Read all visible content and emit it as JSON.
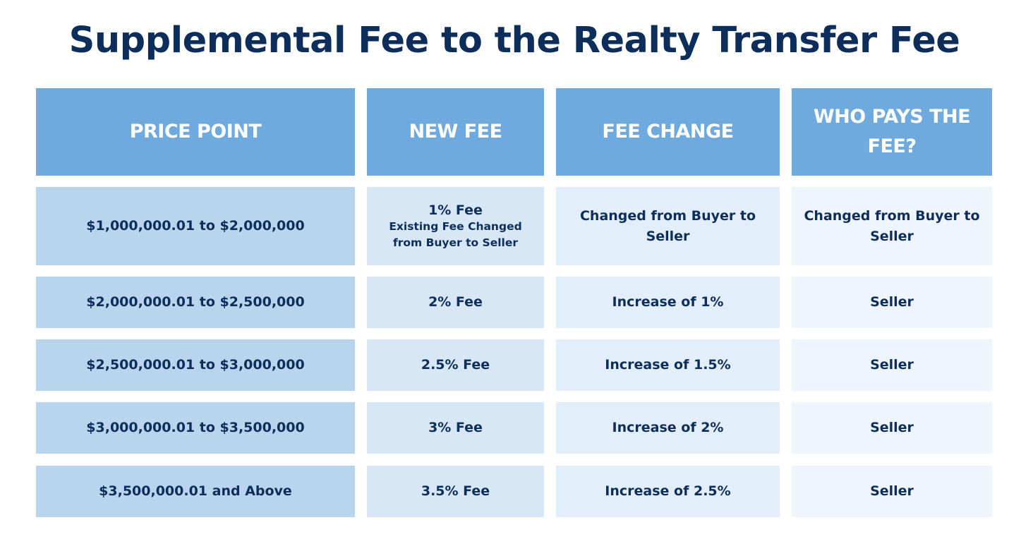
{
  "title": "Supplemental Fee to the Realty Transfer Fee",
  "headers": [
    "PRICE POINT",
    "NEW FEE",
    "FEE CHANGE",
    "WHO PAYS THE FEE?"
  ],
  "rows": [
    {
      "price_point": "$1,000,000.01 to $2,000,000",
      "new_fee": "1% Fee",
      "new_fee_note_line1": "Existing Fee Changed",
      "new_fee_note_line2": "from Buyer to Seller",
      "fee_change": "Changed from Buyer to Seller",
      "who_pays": "Changed from Buyer to Seller"
    },
    {
      "price_point": "$2,000,000.01 to $2,500,000",
      "new_fee": "2% Fee",
      "fee_change": "Increase of 1%",
      "who_pays": "Seller"
    },
    {
      "price_point": "$2,500,000.01 to $3,000,000",
      "new_fee": "2.5% Fee",
      "fee_change": "Increase of 1.5%",
      "who_pays": "Seller"
    },
    {
      "price_point": "$3,000,000.01 to $3,500,000",
      "new_fee": "3% Fee",
      "fee_change": "Increase of 2%",
      "who_pays": "Seller"
    },
    {
      "price_point": "$3,500,000.01 and Above",
      "new_fee": "3.5% Fee",
      "fee_change": "Increase of 2.5%",
      "who_pays": "Seller"
    }
  ],
  "colors": {
    "title": "#0d2d5a",
    "header_bg": "#6eaade",
    "header_text": "#ffffff",
    "col1_bg": "#b9d5ee",
    "col2_bg": "#d7e7f6",
    "col3_bg": "#e2eef9",
    "col4_bg": "#eef5fc"
  }
}
